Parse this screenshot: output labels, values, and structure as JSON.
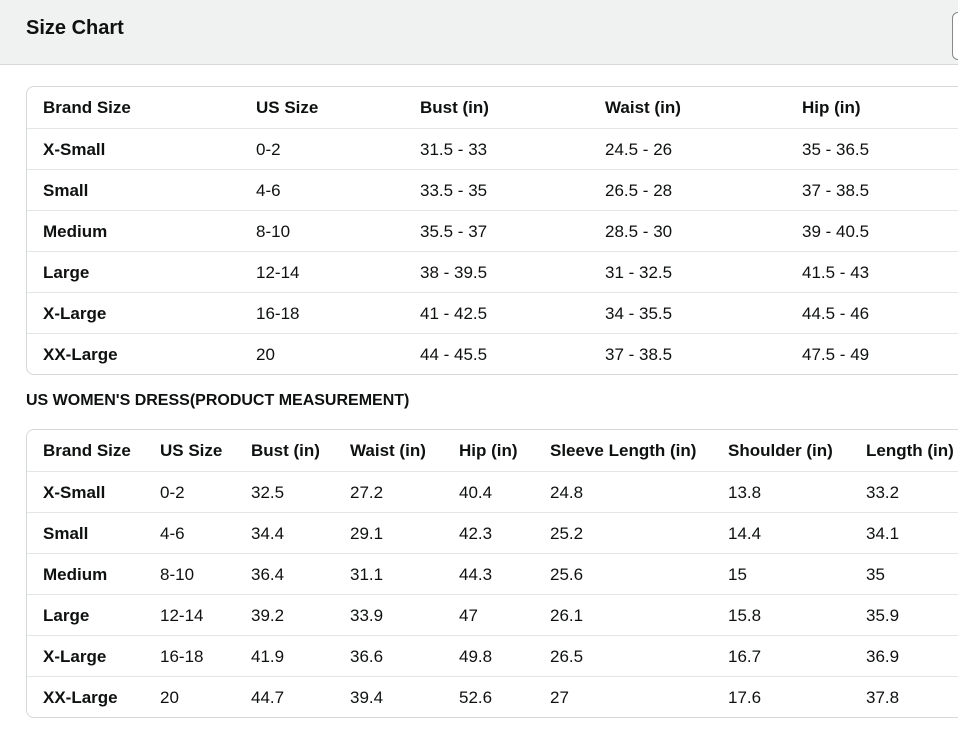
{
  "header": {
    "title": "Size Chart"
  },
  "table1": {
    "columns": [
      "Brand Size",
      "US Size",
      "Bust (in)",
      "Waist (in)",
      "Hip (in)"
    ],
    "rows": [
      [
        "X-Small",
        "0-2",
        "31.5 - 33",
        "24.5 - 26",
        "35 - 36.5"
      ],
      [
        "Small",
        "4-6",
        "33.5 - 35",
        "26.5 - 28",
        "37 - 38.5"
      ],
      [
        "Medium",
        "8-10",
        "35.5 - 37",
        "28.5 - 30",
        "39 - 40.5"
      ],
      [
        "Large",
        "12-14",
        "38 - 39.5",
        "31 - 32.5",
        "41.5 - 43"
      ],
      [
        "X-Large",
        "16-18",
        "41 - 42.5",
        "34 - 35.5",
        "44.5 - 46"
      ],
      [
        "XX-Large",
        "20",
        "44 - 45.5",
        "37 - 38.5",
        "47.5 - 49"
      ]
    ]
  },
  "table2": {
    "heading": "US WOMEN'S DRESS(PRODUCT MEASUREMENT)",
    "columns": [
      "Brand Size",
      "US Size",
      "Bust (in)",
      "Waist (in)",
      "Hip (in)",
      "Sleeve Length (in)",
      "Shoulder (in)",
      "Length (in)"
    ],
    "rows": [
      [
        "X-Small",
        "0-2",
        "32.5",
        "27.2",
        "40.4",
        "24.8",
        "13.8",
        "33.2"
      ],
      [
        "Small",
        "4-6",
        "34.4",
        "29.1",
        "42.3",
        "25.2",
        "14.4",
        "34.1"
      ],
      [
        "Medium",
        "8-10",
        "36.4",
        "31.1",
        "44.3",
        "25.6",
        "15",
        "35"
      ],
      [
        "Large",
        "12-14",
        "39.2",
        "33.9",
        "47",
        "26.1",
        "15.8",
        "35.9"
      ],
      [
        "X-Large",
        "16-18",
        "41.9",
        "36.6",
        "49.8",
        "26.5",
        "16.7",
        "36.9"
      ],
      [
        "XX-Large",
        "20",
        "44.7",
        "39.4",
        "52.6",
        "27",
        "17.6",
        "37.8"
      ]
    ]
  }
}
